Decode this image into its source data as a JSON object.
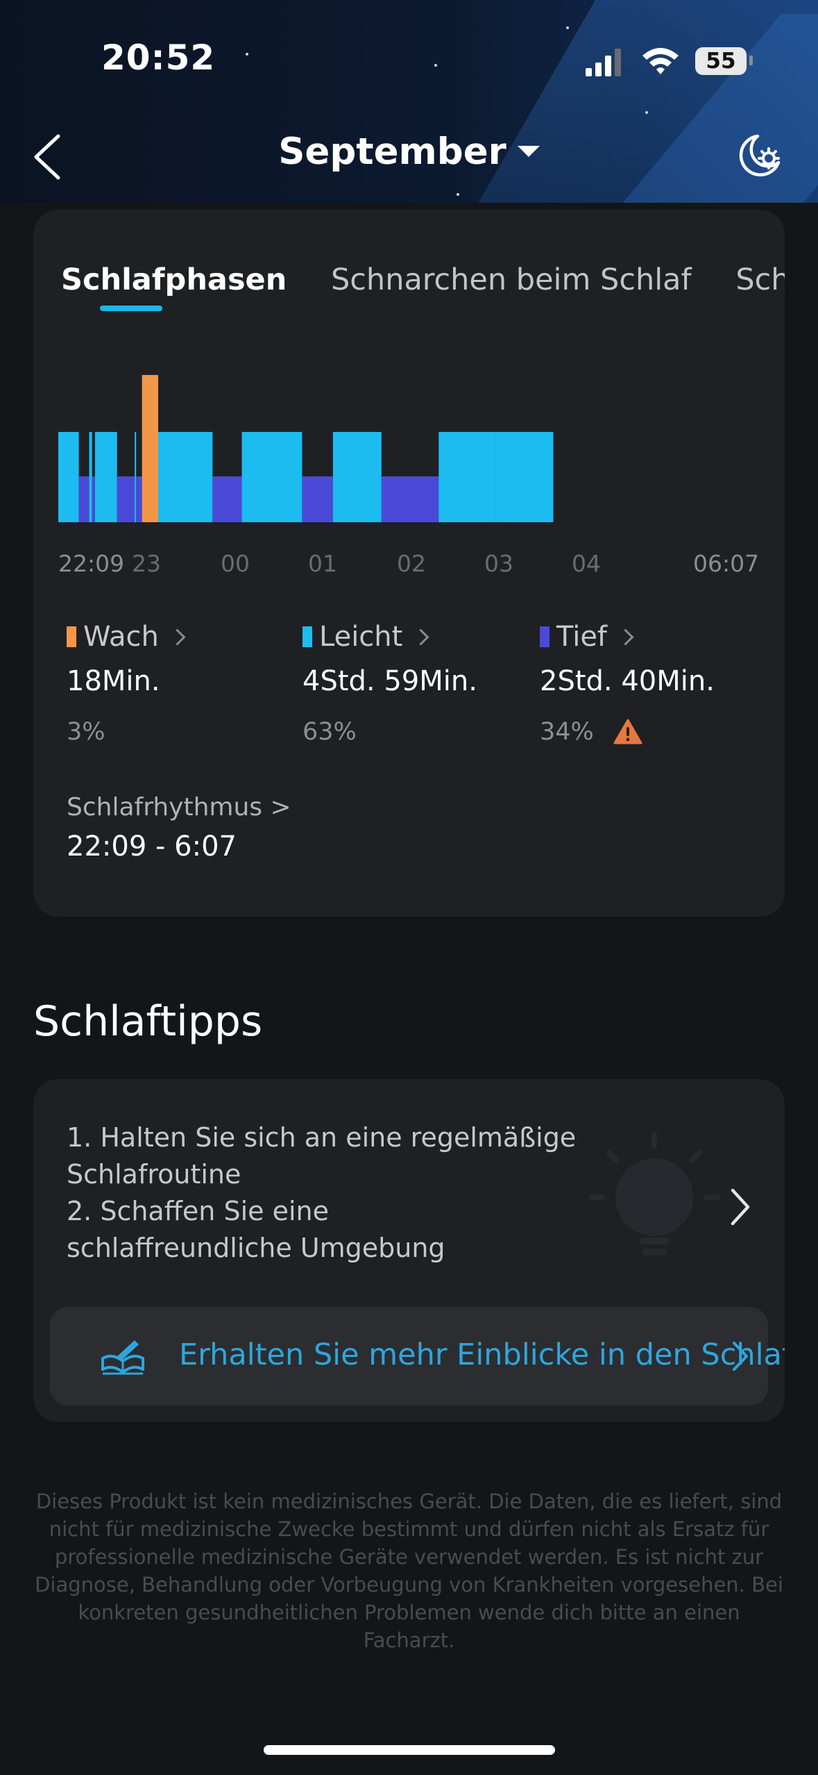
{
  "status_bar": {
    "time": "20:52",
    "battery": "55"
  },
  "header": {
    "title": "September"
  },
  "tabs": [
    {
      "label": "Schlafphasen",
      "active": true
    },
    {
      "label": "Schnarchen beim Schlaf",
      "active": false
    },
    {
      "label": "Schlaf",
      "active": false
    }
  ],
  "chart_data": {
    "type": "bar",
    "x_ticks": [
      "22:09",
      "23",
      "00",
      "01",
      "02",
      "03",
      "04",
      "06:07"
    ],
    "start": "22:09",
    "end": "06:07",
    "stage_levels": {
      "Wach": 3,
      "Leicht": 2,
      "Tief": 1
    },
    "segments": [
      {
        "stage": "Leicht",
        "start": "22:09",
        "end": "22:23"
      },
      {
        "stage": "Tief",
        "start": "22:23",
        "end": "22:30"
      },
      {
        "stage": "Leicht",
        "start": "22:30",
        "end": "22:32"
      },
      {
        "stage": "Tief",
        "start": "22:32",
        "end": "22:34"
      },
      {
        "stage": "Leicht",
        "start": "22:34",
        "end": "22:49"
      },
      {
        "stage": "Tief",
        "start": "22:49",
        "end": "23:01"
      },
      {
        "stage": "Leicht",
        "start": "23:01",
        "end": "23:02"
      },
      {
        "stage": "Tief",
        "start": "23:02",
        "end": "23:06"
      },
      {
        "stage": "Wach",
        "start": "23:06",
        "end": "23:17"
      },
      {
        "stage": "Leicht",
        "start": "23:17",
        "end": "23:54"
      },
      {
        "stage": "Tief",
        "start": "23:54",
        "end": "00:14"
      },
      {
        "stage": "Leicht",
        "start": "00:14",
        "end": "00:55"
      },
      {
        "stage": "Tief",
        "start": "00:55",
        "end": "01:16"
      },
      {
        "stage": "Leicht",
        "start": "01:16",
        "end": "01:49"
      },
      {
        "stage": "Tief",
        "start": "01:49",
        "end": "02:28"
      },
      {
        "stage": "Leicht",
        "start": "02:28",
        "end": "03:07"
      },
      {
        "stage": "Leicht",
        "start": "03:07",
        "end": "03:46"
      }
    ],
    "colors": {
      "Wach": "#f2974a",
      "Leicht": "#1cbcf0",
      "Tief": "#4a4ad9"
    }
  },
  "stats": [
    {
      "label": "Wach",
      "value": "18Min.",
      "percent": "3%",
      "color": "#f2974a",
      "warning": false
    },
    {
      "label": "Leicht",
      "value": "4Std. 59Min.",
      "percent": "63%",
      "color": "#1cbcf0",
      "warning": false
    },
    {
      "label": "Tief",
      "value": "2Std. 40Min.",
      "percent": "34%",
      "color": "#4a4ad9",
      "warning": true
    }
  ],
  "rhythm": {
    "label": "Schlafrhythmus >",
    "value": "22:09 - 6:07"
  },
  "tips": {
    "title": "Schlaftipps",
    "line1": "1. Halten Sie sich an eine regelmäßige",
    "line2": "Schlafroutine",
    "line3": "2. Schaffen Sie eine",
    "line4": "schlaffreundliche Umgebung",
    "insight_label": "Erhalten Sie mehr Einblicke in den Schlaf!"
  },
  "disclaimer": "Dieses Produkt ist kein medizinisches Gerät. Die Daten, die es liefert, sind nicht für medizinische Zwecke bestimmt und dürfen nicht als Ersatz für professionelle medizinische Geräte verwendet werden. Es ist nicht zur Diagnose, Behandlung oder Vorbeugung von Krankheiten vorgesehen. Bei konkreten gesundheitlichen Problemen wende dich bitte an einen Facharzt."
}
